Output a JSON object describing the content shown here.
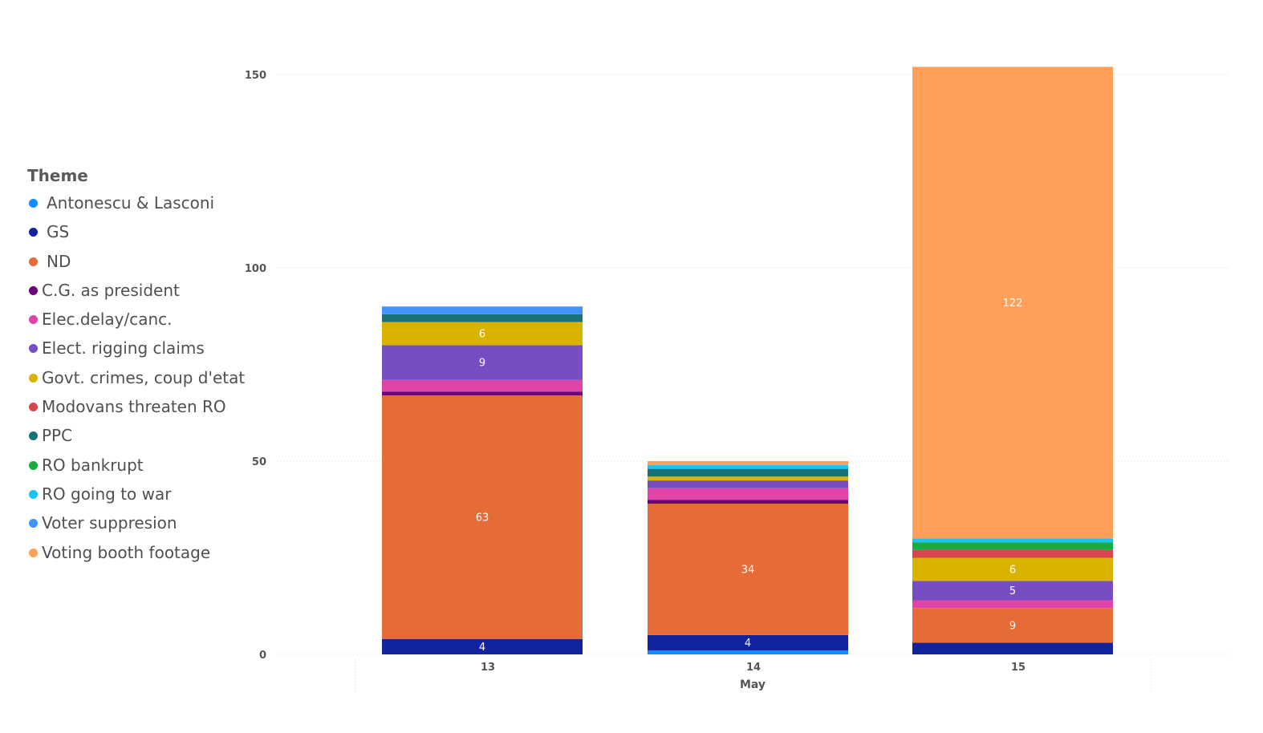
{
  "legend": {
    "title": "Theme",
    "items": [
      {
        "label": " Antonescu & Lasconi",
        "color": "#118dff"
      },
      {
        "label": " GS",
        "color": "#12239e"
      },
      {
        "label": " ND",
        "color": "#e66c37"
      },
      {
        "label": "C.G. as president",
        "color": "#6b007b"
      },
      {
        "label": "Elec.delay/canc.",
        "color": "#e044a7"
      },
      {
        "label": "Elect. rigging claims",
        "color": "#744ec2"
      },
      {
        "label": "Govt. crimes, coup d'etat",
        "color": "#d9b300"
      },
      {
        "label": "Modovans threaten RO",
        "color": "#d64550"
      },
      {
        "label": "PPC",
        "color": "#197278"
      },
      {
        "label": "RO bankrupt",
        "color": "#1aab40"
      },
      {
        "label": "RO going to war",
        "color": "#15c6f4"
      },
      {
        "label": "Voter suppresion",
        "color": "#4092ff"
      },
      {
        "label": "Voting booth footage",
        "color": "#ffa058"
      }
    ]
  },
  "chart_data": {
    "type": "bar",
    "stacked": true,
    "categories": [
      "13",
      "14",
      "15"
    ],
    "xlabel": "May",
    "ylabel": "",
    "ylim": [
      0,
      152
    ],
    "yticks": [
      0,
      50,
      100,
      150
    ],
    "grid": true,
    "legend_position": "left",
    "series": [
      {
        "name": " Antonescu & Lasconi",
        "color": "#118dff",
        "values": [
          0,
          1,
          0
        ],
        "labels": [
          "",
          "",
          ""
        ]
      },
      {
        "name": " GS",
        "color": "#12239e",
        "values": [
          4,
          4,
          3
        ],
        "labels": [
          "4",
          "4",
          ""
        ]
      },
      {
        "name": " ND",
        "color": "#e66c37",
        "values": [
          63,
          34,
          9
        ],
        "labels": [
          "63",
          "34",
          "9"
        ]
      },
      {
        "name": "C.G. as president",
        "color": "#6b007b",
        "values": [
          1,
          1,
          0
        ],
        "labels": [
          "",
          "",
          ""
        ]
      },
      {
        "name": "Elec.delay/canc.",
        "color": "#e044a7",
        "values": [
          3,
          3,
          2
        ],
        "labels": [
          "",
          "",
          ""
        ]
      },
      {
        "name": "Elect. rigging claims",
        "color": "#744ec2",
        "values": [
          9,
          2,
          5
        ],
        "labels": [
          "9",
          "",
          "5"
        ]
      },
      {
        "name": "Govt. crimes, coup d'etat",
        "color": "#d9b300",
        "values": [
          6,
          1,
          6
        ],
        "labels": [
          "6",
          "",
          "6"
        ]
      },
      {
        "name": "Modovans threaten RO",
        "color": "#d64550",
        "values": [
          0,
          0,
          2
        ],
        "labels": [
          "",
          "",
          ""
        ]
      },
      {
        "name": "PPC",
        "color": "#197278",
        "values": [
          2,
          2,
          0
        ],
        "labels": [
          "",
          "",
          ""
        ]
      },
      {
        "name": "RO bankrupt",
        "color": "#1aab40",
        "values": [
          0,
          0,
          2
        ],
        "labels": [
          "",
          "",
          ""
        ]
      },
      {
        "name": "RO going to war",
        "color": "#15c6f4",
        "values": [
          0,
          1,
          1
        ],
        "labels": [
          "",
          "",
          ""
        ]
      },
      {
        "name": "Voter suppresion",
        "color": "#4092ff",
        "values": [
          2,
          0,
          0
        ],
        "labels": [
          "",
          "",
          ""
        ]
      },
      {
        "name": "Voting booth footage",
        "color": "#ffa058",
        "values": [
          0,
          1,
          122
        ],
        "labels": [
          "",
          "",
          "122"
        ]
      }
    ]
  }
}
